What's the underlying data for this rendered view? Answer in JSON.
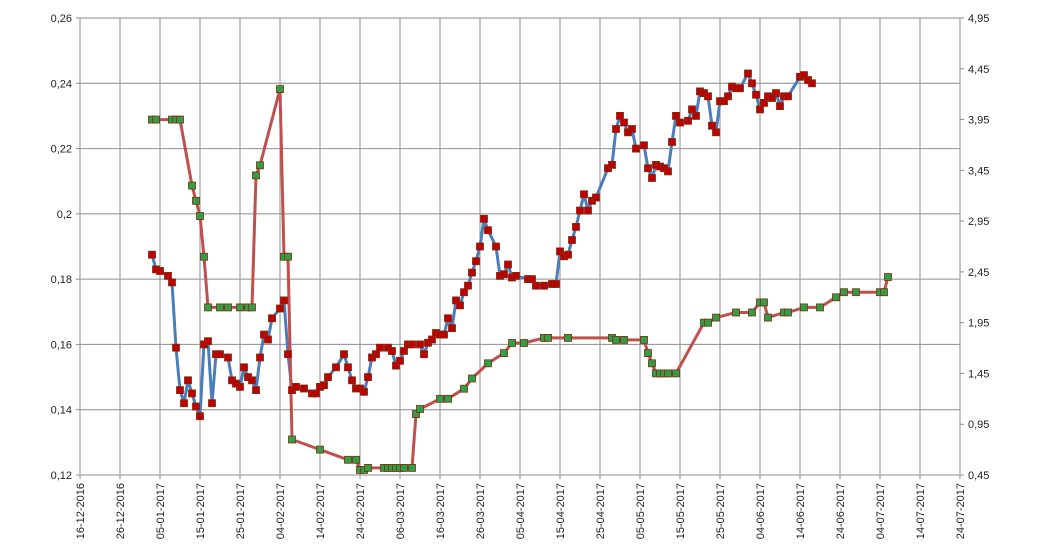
{
  "chart_data": {
    "type": "line",
    "x_type": "date",
    "x_ticks": [
      "16-12-2016",
      "26-12-2016",
      "05-01-2017",
      "15-01-2017",
      "25-01-2017",
      "04-02-2017",
      "14-02-2017",
      "24-02-2017",
      "06-03-2017",
      "16-03-2017",
      "26-03-2017",
      "05-04-2017",
      "15-04-2017",
      "25-04-2017",
      "05-05-2017",
      "15-05-2017",
      "25-05-2017",
      "04-06-2017",
      "14-06-2017",
      "24-06-2017",
      "04-07-2017",
      "14-07-2017",
      "24-07-2017"
    ],
    "xlim": [
      "16-12-2016",
      "24-07-2017"
    ],
    "y_left": {
      "ylim": [
        0.12,
        0.26
      ],
      "ticks": [
        "0,12",
        "0,14",
        "0,16",
        "0,18",
        "0,2",
        "0,22",
        "0,24",
        "0,26"
      ]
    },
    "y_right": {
      "ylim": [
        0.45,
        4.95
      ],
      "ticks": [
        "0,45",
        "0,95",
        "1,45",
        "1,95",
        "2,45",
        "2,95",
        "3,45",
        "3,95",
        "4,45",
        "4,95"
      ]
    },
    "grid": true,
    "legend": "none",
    "colors": {
      "blue": "#4a7ebb",
      "red": "#c0504d",
      "green_marker": "#2f9e45",
      "red_marker": "#c00000",
      "marker_border": "#7a2e10"
    },
    "series": [
      {
        "axis": "left",
        "color": "#4a7ebb",
        "points": [
          [
            "03-01-2017",
            0.1875
          ],
          [
            "04-01-2017",
            0.183
          ],
          [
            "05-01-2017",
            0.1825
          ],
          [
            "07-01-2017",
            0.181
          ],
          [
            "08-01-2017",
            0.179
          ],
          [
            "09-01-2017",
            0.159
          ],
          [
            "10-01-2017",
            0.146
          ],
          [
            "11-01-2017",
            0.142
          ],
          [
            "12-01-2017",
            0.149
          ],
          [
            "13-01-2017",
            0.145
          ],
          [
            "14-01-2017",
            0.141
          ],
          [
            "15-01-2017",
            0.138
          ],
          [
            "16-01-2017",
            0.16
          ],
          [
            "17-01-2017",
            0.161
          ],
          [
            "18-01-2017",
            0.142
          ],
          [
            "19-01-2017",
            0.157
          ],
          [
            "20-01-2017",
            0.157
          ],
          [
            "22-01-2017",
            0.156
          ],
          [
            "23-01-2017",
            0.149
          ],
          [
            "24-01-2017",
            0.148
          ],
          [
            "25-01-2017",
            0.147
          ],
          [
            "26-01-2017",
            0.153
          ],
          [
            "27-01-2017",
            0.15
          ],
          [
            "28-01-2017",
            0.149
          ],
          [
            "29-01-2017",
            0.146
          ],
          [
            "30-01-2017",
            0.156
          ],
          [
            "31-01-2017",
            0.163
          ],
          [
            "01-02-2017",
            0.1615
          ],
          [
            "02-02-2017",
            0.168
          ],
          [
            "04-02-2017",
            0.171
          ],
          [
            "05-02-2017",
            0.1735
          ],
          [
            "06-02-2017",
            0.157
          ],
          [
            "07-02-2017",
            0.146
          ],
          [
            "08-02-2017",
            0.147
          ],
          [
            "10-02-2017",
            0.1465
          ],
          [
            "12-02-2017",
            0.145
          ],
          [
            "13-02-2017",
            0.145
          ],
          [
            "14-02-2017",
            0.147
          ],
          [
            "15-02-2017",
            0.1475
          ],
          [
            "16-02-2017",
            0.15
          ],
          [
            "18-02-2017",
            0.153
          ],
          [
            "20-02-2017",
            0.157
          ],
          [
            "21-02-2017",
            0.153
          ],
          [
            "22-02-2017",
            0.149
          ],
          [
            "23-02-2017",
            0.1465
          ],
          [
            "24-02-2017",
            0.1465
          ],
          [
            "25-02-2017",
            0.1455
          ],
          [
            "26-02-2017",
            0.15
          ],
          [
            "27-02-2017",
            0.156
          ],
          [
            "28-02-2017",
            0.157
          ],
          [
            "01-03-2017",
            0.159
          ],
          [
            "03-03-2017",
            0.159
          ],
          [
            "04-03-2017",
            0.158
          ],
          [
            "05-03-2017",
            0.1535
          ],
          [
            "06-03-2017",
            0.155
          ],
          [
            "07-03-2017",
            0.158
          ],
          [
            "08-03-2017",
            0.16
          ],
          [
            "09-03-2017",
            0.16
          ],
          [
            "11-03-2017",
            0.16
          ],
          [
            "12-03-2017",
            0.157
          ],
          [
            "13-03-2017",
            0.1605
          ],
          [
            "14-03-2017",
            0.1615
          ],
          [
            "15-03-2017",
            0.1635
          ],
          [
            "16-03-2017",
            0.163
          ],
          [
            "17-03-2017",
            0.163
          ],
          [
            "18-03-2017",
            0.168
          ],
          [
            "19-03-2017",
            0.165
          ],
          [
            "20-03-2017",
            0.1735
          ],
          [
            "21-03-2017",
            0.172
          ],
          [
            "22-03-2017",
            0.176
          ],
          [
            "23-03-2017",
            0.178
          ],
          [
            "24-03-2017",
            0.182
          ],
          [
            "25-03-2017",
            0.1855
          ],
          [
            "26-03-2017",
            0.19
          ],
          [
            "27-03-2017",
            0.1985
          ],
          [
            "28-03-2017",
            0.195
          ],
          [
            "30-03-2017",
            0.19
          ],
          [
            "31-03-2017",
            0.181
          ],
          [
            "01-04-2017",
            0.1815
          ],
          [
            "02-04-2017",
            0.1845
          ],
          [
            "03-04-2017",
            0.1805
          ],
          [
            "04-04-2017",
            0.181
          ],
          [
            "07-04-2017",
            0.18
          ],
          [
            "08-04-2017",
            0.18
          ],
          [
            "09-04-2017",
            0.178
          ],
          [
            "11-04-2017",
            0.178
          ],
          [
            "13-04-2017",
            0.1785
          ],
          [
            "14-04-2017",
            0.1785
          ],
          [
            "15-04-2017",
            0.1885
          ],
          [
            "16-04-2017",
            0.187
          ],
          [
            "17-04-2017",
            0.1875
          ],
          [
            "18-04-2017",
            0.192
          ],
          [
            "19-04-2017",
            0.196
          ],
          [
            "20-04-2017",
            0.201
          ],
          [
            "21-04-2017",
            0.206
          ],
          [
            "22-04-2017",
            0.201
          ],
          [
            "23-04-2017",
            0.204
          ],
          [
            "24-04-2017",
            0.205
          ],
          [
            "27-04-2017",
            0.214
          ],
          [
            "28-04-2017",
            0.215
          ],
          [
            "29-04-2017",
            0.226
          ],
          [
            "30-04-2017",
            0.23
          ],
          [
            "01-05-2017",
            0.228
          ],
          [
            "02-05-2017",
            0.225
          ],
          [
            "03-05-2017",
            0.226
          ],
          [
            "04-05-2017",
            0.22
          ],
          [
            "06-05-2017",
            0.221
          ],
          [
            "07-05-2017",
            0.214
          ],
          [
            "08-05-2017",
            0.211
          ],
          [
            "09-05-2017",
            0.215
          ],
          [
            "10-05-2017",
            0.2145
          ],
          [
            "11-05-2017",
            0.214
          ],
          [
            "12-05-2017",
            0.213
          ],
          [
            "13-05-2017",
            0.222
          ],
          [
            "14-05-2017",
            0.23
          ],
          [
            "15-05-2017",
            0.228
          ],
          [
            "17-05-2017",
            0.2285
          ],
          [
            "18-05-2017",
            0.232
          ],
          [
            "19-05-2017",
            0.23
          ],
          [
            "20-05-2017",
            0.2375
          ],
          [
            "21-05-2017",
            0.237
          ],
          [
            "22-05-2017",
            0.236
          ],
          [
            "23-05-2017",
            0.227
          ],
          [
            "24-05-2017",
            0.225
          ],
          [
            "25-05-2017",
            0.2345
          ],
          [
            "26-05-2017",
            0.2345
          ],
          [
            "27-05-2017",
            0.236
          ],
          [
            "28-05-2017",
            0.239
          ],
          [
            "29-05-2017",
            0.2385
          ],
          [
            "30-05-2017",
            0.2385
          ],
          [
            "01-06-2017",
            0.243
          ],
          [
            "02-06-2017",
            0.24
          ],
          [
            "03-06-2017",
            0.2365
          ],
          [
            "04-06-2017",
            0.232
          ],
          [
            "05-06-2017",
            0.234
          ],
          [
            "06-06-2017",
            0.236
          ],
          [
            "07-06-2017",
            0.2355
          ],
          [
            "08-06-2017",
            0.237
          ],
          [
            "09-06-2017",
            0.233
          ],
          [
            "10-06-2017",
            0.236
          ],
          [
            "11-06-2017",
            0.236
          ],
          [
            "14-06-2017",
            0.242
          ],
          [
            "15-06-2017",
            0.2425
          ],
          [
            "16-06-2017",
            0.241
          ],
          [
            "17-06-2017",
            0.24
          ]
        ]
      },
      {
        "axis": "right",
        "color": "#c0504d",
        "points": [
          [
            "03-01-2017",
            3.95
          ],
          [
            "04-01-2017",
            3.95
          ],
          [
            "08-01-2017",
            3.95
          ],
          [
            "09-01-2017",
            3.95
          ],
          [
            "10-01-2017",
            3.95
          ],
          [
            "13-01-2017",
            3.3
          ],
          [
            "14-01-2017",
            3.15
          ],
          [
            "15-01-2017",
            3.0
          ],
          [
            "16-01-2017",
            2.6
          ],
          [
            "17-01-2017",
            2.1
          ],
          [
            "20-01-2017",
            2.1
          ],
          [
            "22-01-2017",
            2.1
          ],
          [
            "25-01-2017",
            2.1
          ],
          [
            "27-01-2017",
            2.1
          ],
          [
            "28-01-2017",
            2.1
          ],
          [
            "29-01-2017",
            3.4
          ],
          [
            "30-01-2017",
            3.5
          ],
          [
            "04-02-2017",
            4.25
          ],
          [
            "05-02-2017",
            2.6
          ],
          [
            "06-02-2017",
            2.6
          ],
          [
            "07-02-2017",
            0.8
          ],
          [
            "14-02-2017",
            0.7
          ],
          [
            "21-02-2017",
            0.6
          ],
          [
            "23-02-2017",
            0.6
          ],
          [
            "24-02-2017",
            0.5
          ],
          [
            "25-02-2017",
            0.5
          ],
          [
            "26-02-2017",
            0.52
          ],
          [
            "02-03-2017",
            0.52
          ],
          [
            "03-03-2017",
            0.52
          ],
          [
            "04-03-2017",
            0.52
          ],
          [
            "05-03-2017",
            0.52
          ],
          [
            "06-03-2017",
            0.52
          ],
          [
            "07-03-2017",
            0.52
          ],
          [
            "09-03-2017",
            0.52
          ],
          [
            "10-03-2017",
            1.05
          ],
          [
            "11-03-2017",
            1.1
          ],
          [
            "16-03-2017",
            1.2
          ],
          [
            "18-03-2017",
            1.2
          ],
          [
            "22-03-2017",
            1.3
          ],
          [
            "24-03-2017",
            1.4
          ],
          [
            "28-03-2017",
            1.55
          ],
          [
            "01-04-2017",
            1.65
          ],
          [
            "03-04-2017",
            1.75
          ],
          [
            "06-04-2017",
            1.75
          ],
          [
            "11-04-2017",
            1.8
          ],
          [
            "12-04-2017",
            1.8
          ],
          [
            "17-04-2017",
            1.8
          ],
          [
            "28-04-2017",
            1.8
          ],
          [
            "29-04-2017",
            1.78
          ],
          [
            "01-05-2017",
            1.78
          ],
          [
            "06-05-2017",
            1.78
          ],
          [
            "07-05-2017",
            1.65
          ],
          [
            "08-05-2017",
            1.55
          ],
          [
            "09-05-2017",
            1.45
          ],
          [
            "10-05-2017",
            1.45
          ],
          [
            "11-05-2017",
            1.45
          ],
          [
            "12-05-2017",
            1.45
          ],
          [
            "14-05-2017",
            1.45
          ],
          [
            "21-05-2017",
            1.95
          ],
          [
            "22-05-2017",
            1.95
          ],
          [
            "24-05-2017",
            2.0
          ],
          [
            "29-05-2017",
            2.05
          ],
          [
            "02-06-2017",
            2.05
          ],
          [
            "04-06-2017",
            2.15
          ],
          [
            "05-06-2017",
            2.15
          ],
          [
            "06-06-2017",
            2.0
          ],
          [
            "10-06-2017",
            2.05
          ],
          [
            "11-06-2017",
            2.05
          ],
          [
            "15-06-2017",
            2.1
          ],
          [
            "19-06-2017",
            2.1
          ],
          [
            "23-06-2017",
            2.2
          ],
          [
            "25-06-2017",
            2.25
          ],
          [
            "28-06-2017",
            2.25
          ],
          [
            "04-07-2017",
            2.25
          ],
          [
            "05-07-2017",
            2.25
          ],
          [
            "06-07-2017",
            2.4
          ]
        ]
      }
    ]
  }
}
